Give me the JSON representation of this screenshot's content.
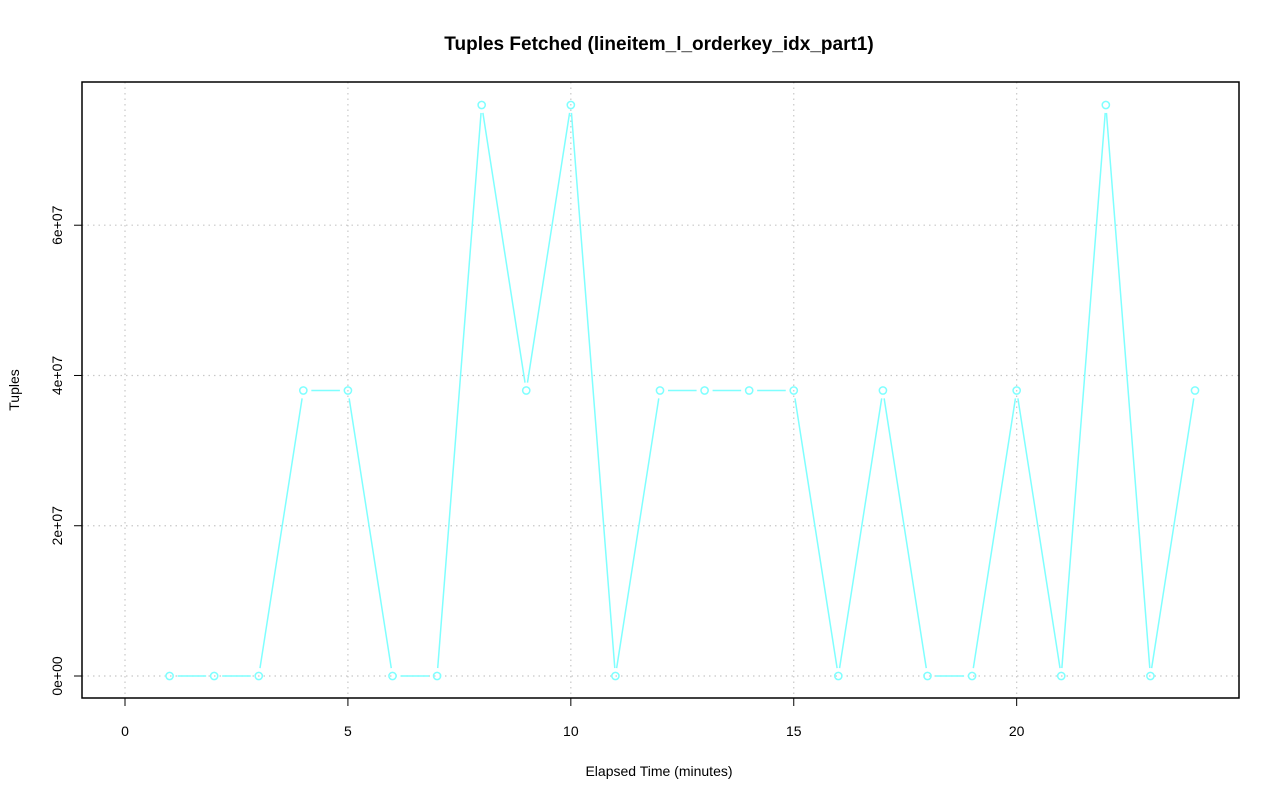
{
  "chart_data": {
    "type": "line",
    "title": "Tuples Fetched (lineitem_l_orderkey_idx_part1)",
    "xlabel": "Elapsed Time (minutes)",
    "ylabel": "Tuples",
    "xlim": [
      0,
      24
    ],
    "ylim": [
      0,
      76000000
    ],
    "x_ticks": [
      0,
      5,
      10,
      15,
      20
    ],
    "x_tick_labels": [
      "0",
      "5",
      "10",
      "15",
      "20"
    ],
    "y_ticks": [
      0,
      20000000,
      40000000,
      60000000
    ],
    "y_tick_labels": [
      "0e+00",
      "2e+07",
      "4e+07",
      "6e+07"
    ],
    "grid": true,
    "series": [
      {
        "color": "#7fffff",
        "x": [
          1,
          2,
          3,
          4,
          5,
          6,
          7,
          8,
          9,
          10,
          11,
          12,
          13,
          14,
          15,
          16,
          17,
          18,
          19,
          20,
          21,
          22,
          23,
          24
        ],
        "y": [
          0,
          0,
          0,
          38000000,
          38000000,
          0,
          0,
          76000000,
          38000000,
          76000000,
          0,
          38000000,
          38000000,
          38000000,
          38000000,
          0,
          38000000,
          0,
          0,
          38000000,
          0,
          76000000,
          0,
          38000000
        ]
      }
    ]
  }
}
